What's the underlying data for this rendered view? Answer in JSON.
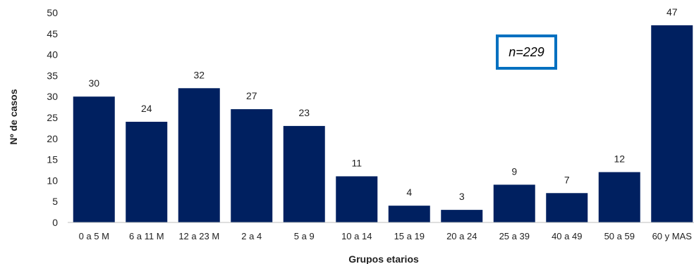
{
  "chart_data": {
    "type": "bar",
    "xlabel": "Grupos etarios",
    "ylabel": "Nº de casos",
    "ylim": [
      0,
      50
    ],
    "yticks": [
      0,
      5,
      10,
      15,
      20,
      25,
      30,
      35,
      40,
      45,
      50
    ],
    "grid": false,
    "categories": [
      "0 a 5 M",
      "6 a 11 M",
      "12 a 23 M",
      "2 a 4",
      "5 a 9",
      "10 a 14",
      "15 a 19",
      "20 a 24",
      "25 a 39",
      "40 a 49",
      "50 a 59",
      "60 y MAS"
    ],
    "values": [
      30,
      24,
      32,
      27,
      23,
      11,
      4,
      3,
      9,
      7,
      12,
      47
    ],
    "data_labels": true,
    "annotation": "n=229"
  },
  "colors": {
    "bar": "#002060",
    "annotation_border": "#0070C0",
    "axis": "#bfbfbf"
  }
}
